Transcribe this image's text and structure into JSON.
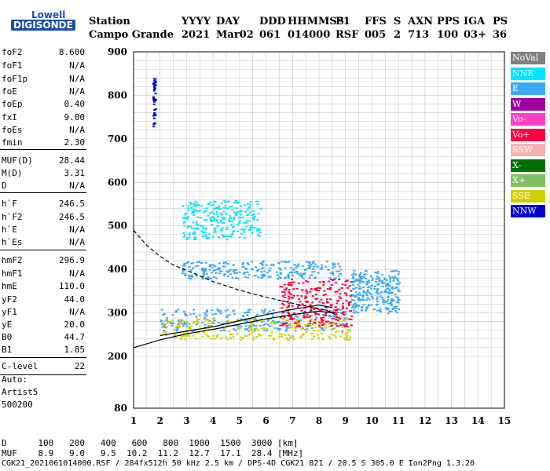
{
  "logo": {
    "top": "Lowell",
    "bottom": "DIGISONDE"
  },
  "header": {
    "row1": [
      "Station",
      "YYYY",
      "DAY",
      "DDD",
      "HHMMSS",
      "P1",
      "FFS",
      "S",
      "AXN",
      "PPS",
      "IGA",
      "PS"
    ],
    "row2": [
      "Campo Grande",
      "2021",
      "Mar02",
      "061",
      "014000",
      "RSF",
      "005",
      "2",
      "713",
      "100",
      "03+",
      "36"
    ]
  },
  "params": [
    {
      "label": "foF2",
      "value": "8.600"
    },
    {
      "label": "foF1",
      "value": "N/A"
    },
    {
      "label": "foF1p",
      "value": "N/A"
    },
    {
      "label": "foE",
      "value": "N/A"
    },
    {
      "label": "foEp",
      "value": "0.40"
    },
    {
      "label": "fxI",
      "value": "9.00"
    },
    {
      "label": "foEs",
      "value": "N/A"
    },
    {
      "label": "fmin",
      "value": "2.30"
    },
    {
      "label": "MUF(D)",
      "value": "28.44"
    },
    {
      "label": "M(D)",
      "value": "3.31"
    },
    {
      "label": "D",
      "value": "N/A"
    },
    {
      "label": "h`F",
      "value": "246.5"
    },
    {
      "label": "h`F2",
      "value": "246.5"
    },
    {
      "label": "h`E",
      "value": "N/A"
    },
    {
      "label": "h`Es",
      "value": "N/A"
    },
    {
      "label": "hmF2",
      "value": "296.9"
    },
    {
      "label": "hmF1",
      "value": "N/A"
    },
    {
      "label": "hmE",
      "value": "110.0"
    },
    {
      "label": "yF2",
      "value": "44.0"
    },
    {
      "label": "yF1",
      "value": "N/A"
    },
    {
      "label": "yE",
      "value": "20.0"
    },
    {
      "label": "B0",
      "value": "44.7"
    },
    {
      "label": "B1",
      "value": "1.85"
    },
    {
      "label": "C-level",
      "value": "22"
    }
  ],
  "autoscale": {
    "line1": "Auto:",
    "line2": "Artist5",
    "line3": "500200"
  },
  "legend": [
    {
      "label": "NoVal",
      "color": "#808080"
    },
    {
      "label": "NNE",
      "color": "#00e5ff"
    },
    {
      "label": "E",
      "color": "#3aaaf5"
    },
    {
      "label": "W",
      "color": "#a000a0"
    },
    {
      "label": "Vo-",
      "color": "#ff3fc8"
    },
    {
      "label": "Vo+",
      "color": "#ff0040"
    },
    {
      "label": "SSW",
      "color": "#f6b0b0"
    },
    {
      "label": "X-",
      "color": "#007000"
    },
    {
      "label": "X+",
      "color": "#80c060"
    },
    {
      "label": "SSE",
      "color": "#d0d000"
    },
    {
      "label": "NNW",
      "color": "#0000d0"
    }
  ],
  "footer": {
    "row1_label": "D",
    "row1_values": [
      "100",
      "200",
      "400",
      "600",
      "800",
      "1000",
      "1500",
      "3000"
    ],
    "row1_unit": "[km]",
    "row2_label": "MUF",
    "row2_values": [
      "8.9",
      "9.0",
      "9.5",
      "10.2",
      "11.2",
      "12.7",
      "17.1",
      "28.4"
    ],
    "row2_unit": "[MHz]",
    "file_line": "CGK21_2021061014000.RSF / 284fx512h 50 kHz 2.5 km / DPS-4D CGK21 821 / 20.5 S 305.0 E Ion2Png 1.3.20"
  },
  "chart_data": {
    "type": "scatter",
    "x_ticks": [
      1,
      2,
      3,
      4,
      5,
      6,
      7,
      8,
      9,
      10,
      11,
      12,
      13,
      14,
      15
    ],
    "y_ticks": [
      80,
      200,
      300,
      400,
      500,
      600,
      700,
      800,
      900
    ],
    "xlim": [
      1,
      15
    ],
    "ylim": [
      80,
      900
    ],
    "grid": true,
    "curves": [
      {
        "name": "",
        "style": "solid",
        "color": "#000000",
        "x": [
          1.0,
          2.0,
          3.0,
          4.0,
          5.0,
          6.0,
          7.0,
          8.0,
          8.5,
          8.6
        ],
        "y": [
          220,
          238,
          252,
          262,
          274,
          286,
          296,
          304,
          300,
          296
        ]
      },
      {
        "name": "",
        "style": "solid",
        "color": "#000000",
        "x": [
          2.0,
          3.0,
          4.0,
          5.0,
          6.0,
          7.0,
          8.0,
          8.5
        ],
        "y": [
          248,
          258,
          268,
          282,
          296,
          308,
          318,
          312
        ]
      },
      {
        "name": "",
        "style": "dashed",
        "color": "#000000",
        "x": [
          1.0,
          1.5,
          2.0,
          2.5,
          3.0,
          4.0,
          5.0,
          6.0,
          7.0,
          8.0,
          8.6
        ],
        "y": [
          490,
          455,
          430,
          410,
          398,
          372,
          352,
          336,
          322,
          310,
          300
        ]
      }
    ],
    "echo_clusters": [
      {
        "class": "E",
        "x": [
          2.0,
          9.2
        ],
        "y": [
          260,
          310
        ]
      },
      {
        "class": "SSE",
        "x": [
          2.0,
          9.2
        ],
        "y": [
          240,
          290
        ]
      },
      {
        "class": "Vo+",
        "x": [
          6.5,
          9.2
        ],
        "y": [
          270,
          380
        ]
      },
      {
        "class": "E",
        "x": [
          2.8,
          8.8
        ],
        "y": [
          380,
          420
        ]
      },
      {
        "class": "NNE",
        "x": [
          2.8,
          5.8
        ],
        "y": [
          470,
          560
        ]
      },
      {
        "class": "E",
        "x": [
          9.2,
          11.0
        ],
        "y": [
          300,
          400
        ]
      },
      {
        "class": "NNW",
        "x": [
          1.7,
          1.8
        ],
        "y": [
          730,
          840
        ]
      }
    ]
  }
}
